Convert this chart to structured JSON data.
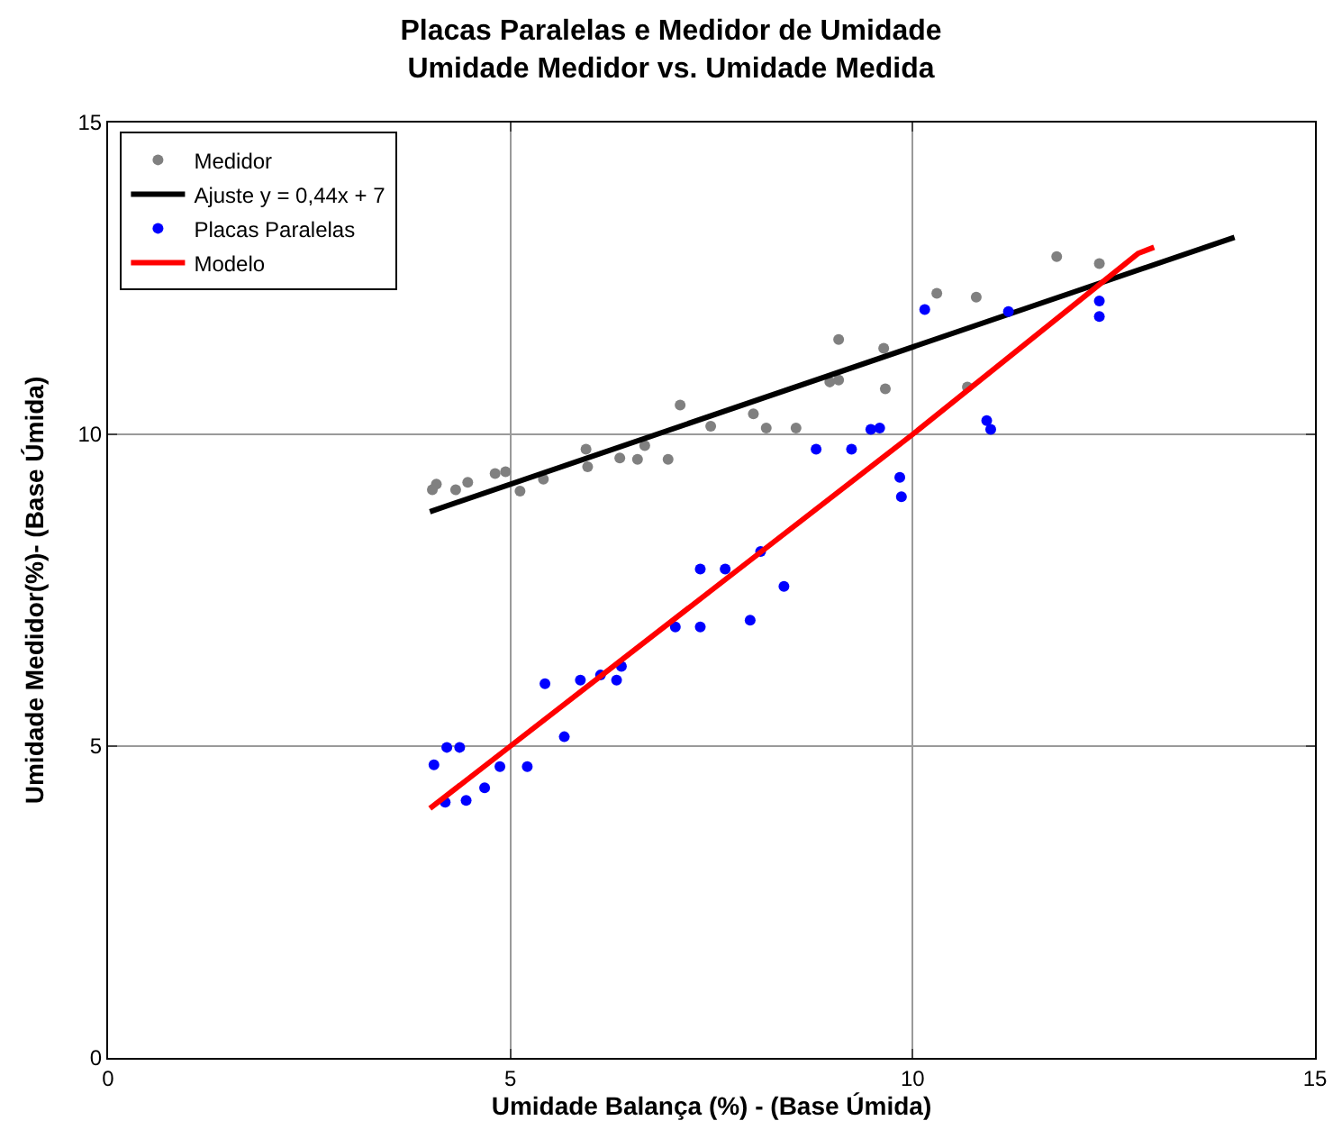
{
  "chart_data": {
    "type": "scatter",
    "title": "Placas Paralelas e Medidor de Umidade\nUmidade Medidor vs. Umidade Medida",
    "xlabel": "Umidade Balança (%) - (Base Úmida)",
    "ylabel": "Umidade Medidor(%)- (Base Úmida)",
    "xlim": [
      0,
      15
    ],
    "ylim": [
      0,
      15
    ],
    "xticks": [
      0,
      5,
      10,
      15
    ],
    "yticks": [
      0,
      5,
      10,
      15
    ],
    "grid": true,
    "legend": "top left",
    "marker": "circle",
    "series": [
      {
        "name": "Medidor",
        "color": "#808080",
        "x": [
          4.03,
          4.08,
          4.32,
          4.47,
          4.81,
          4.94,
          5.12,
          5.41,
          5.94,
          5.96,
          6.36,
          6.58,
          6.67,
          6.96,
          7.11,
          7.49,
          8.02,
          8.18,
          8.55,
          8.97,
          9.08,
          9.08,
          9.64,
          9.66,
          10.3,
          10.79,
          10.68,
          11.79,
          12.32
        ],
        "values": [
          9.11,
          9.2,
          9.11,
          9.23,
          9.37,
          9.4,
          9.09,
          9.28,
          9.76,
          9.48,
          9.62,
          9.6,
          9.82,
          9.6,
          10.47,
          10.13,
          10.33,
          10.1,
          10.1,
          10.84,
          10.87,
          11.52,
          11.38,
          10.73,
          12.26,
          12.2,
          10.76,
          12.85,
          12.74
        ]
      },
      {
        "name": "Ajuste y = 0,44x + 7",
        "type": "line",
        "color": "#000000",
        "marker": "none",
        "x": [
          4,
          14
        ],
        "values": [
          8.76,
          13.16
        ]
      },
      {
        "name": "Placas Paralelas",
        "color": "#0000ff",
        "x": [
          4.05,
          4.21,
          4.37,
          4.19,
          4.45,
          4.68,
          4.87,
          5.21,
          5.43,
          5.67,
          5.87,
          6.12,
          6.32,
          6.38,
          7.05,
          7.36,
          7.36,
          7.67,
          7.98,
          8.11,
          8.4,
          8.8,
          9.24,
          9.48,
          9.59,
          9.84,
          9.86,
          10.15,
          10.92,
          10.97,
          11.19,
          12.32,
          12.32
        ],
        "values": [
          4.7,
          4.98,
          4.98,
          4.1,
          4.13,
          4.33,
          4.67,
          4.67,
          6.0,
          5.15,
          6.06,
          6.14,
          6.06,
          6.28,
          6.91,
          6.91,
          7.84,
          7.84,
          7.02,
          8.12,
          7.56,
          9.76,
          9.76,
          10.08,
          10.1,
          9.31,
          9.0,
          12.0,
          10.22,
          10.08,
          11.97,
          12.14,
          11.89
        ]
      },
      {
        "name": "Modelo",
        "type": "line",
        "color": "#ff0000",
        "marker": "none",
        "x": [
          4,
          5,
          7.5,
          10,
          12.8,
          13
        ],
        "values": [
          4.0,
          5.0,
          7.5,
          10.0,
          12.9,
          13.0
        ]
      }
    ]
  }
}
